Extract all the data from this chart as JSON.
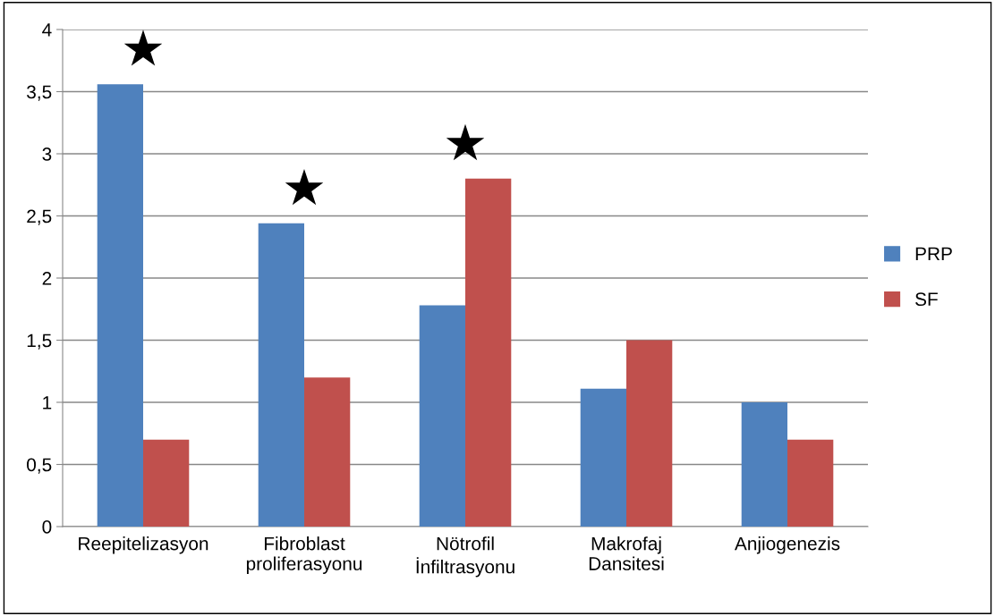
{
  "chart_data": {
    "type": "bar",
    "categories": [
      "Reepitelizasyon",
      "Fibroblast\nproliferasyonu",
      "Nötrofil\nİnfiltrasyonu",
      "Makrofaj\nDansitesi",
      "Anjiogenezis"
    ],
    "series": [
      {
        "name": "PRP",
        "color": "#4f81bd",
        "values": [
          3.56,
          2.44,
          1.78,
          1.11,
          1.0
        ]
      },
      {
        "name": "SF",
        "color": "#c0504d",
        "values": [
          0.7,
          1.2,
          2.8,
          1.5,
          0.7
        ]
      }
    ],
    "ylim": [
      0,
      4
    ],
    "yticks": [
      0,
      {
        "value": 0.5,
        "label": "0,5"
      },
      1,
      {
        "value": 1.5,
        "label": "1,5"
      },
      2,
      {
        "value": 2.5,
        "label": "2,5"
      },
      3,
      {
        "value": 3.5,
        "label": "3,5"
      },
      4
    ],
    "grid": "y",
    "legend": "right",
    "annotations": [
      {
        "text": "★",
        "x": "Reepitelizasyon",
        "y": 3.56
      },
      {
        "text": "★",
        "x": "Fibroblast\nproliferasyonu",
        "y": 2.44
      },
      {
        "text": "★",
        "x": "Nötrofil\nİnfiltrasyonu",
        "y": 2.8
      }
    ]
  }
}
